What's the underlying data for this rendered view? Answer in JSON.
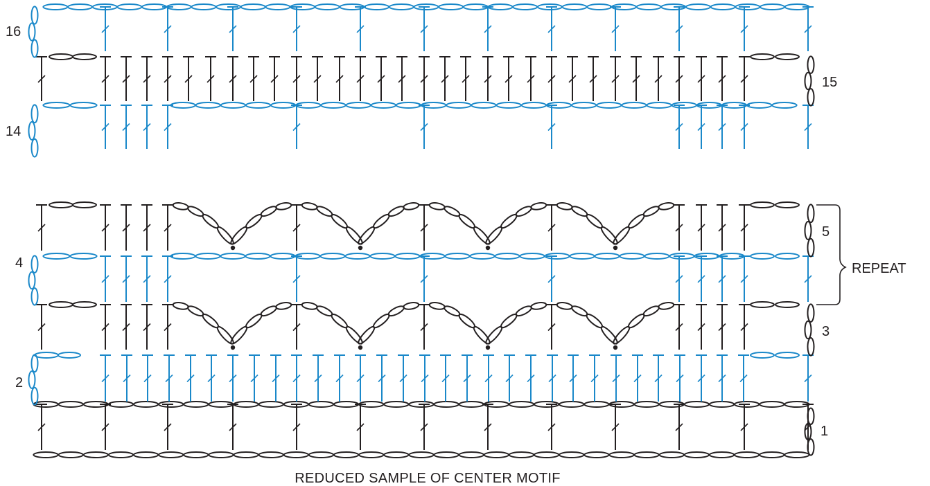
{
  "caption": "REDUCED SAMPLE OF CENTER MOTIF",
  "row_labels": {
    "r1": "1",
    "r2": "2",
    "r3": "3",
    "r4": "4",
    "r5": "5",
    "r14": "14",
    "r15": "15",
    "r16": "16"
  },
  "repeat_label": "REPEAT",
  "colors": {
    "odd_rows": "#231f20",
    "even_rows": "#1a88c9"
  },
  "symbols": [
    "chain",
    "double-crochet",
    "single-crochet",
    "slip-stitch"
  ]
}
